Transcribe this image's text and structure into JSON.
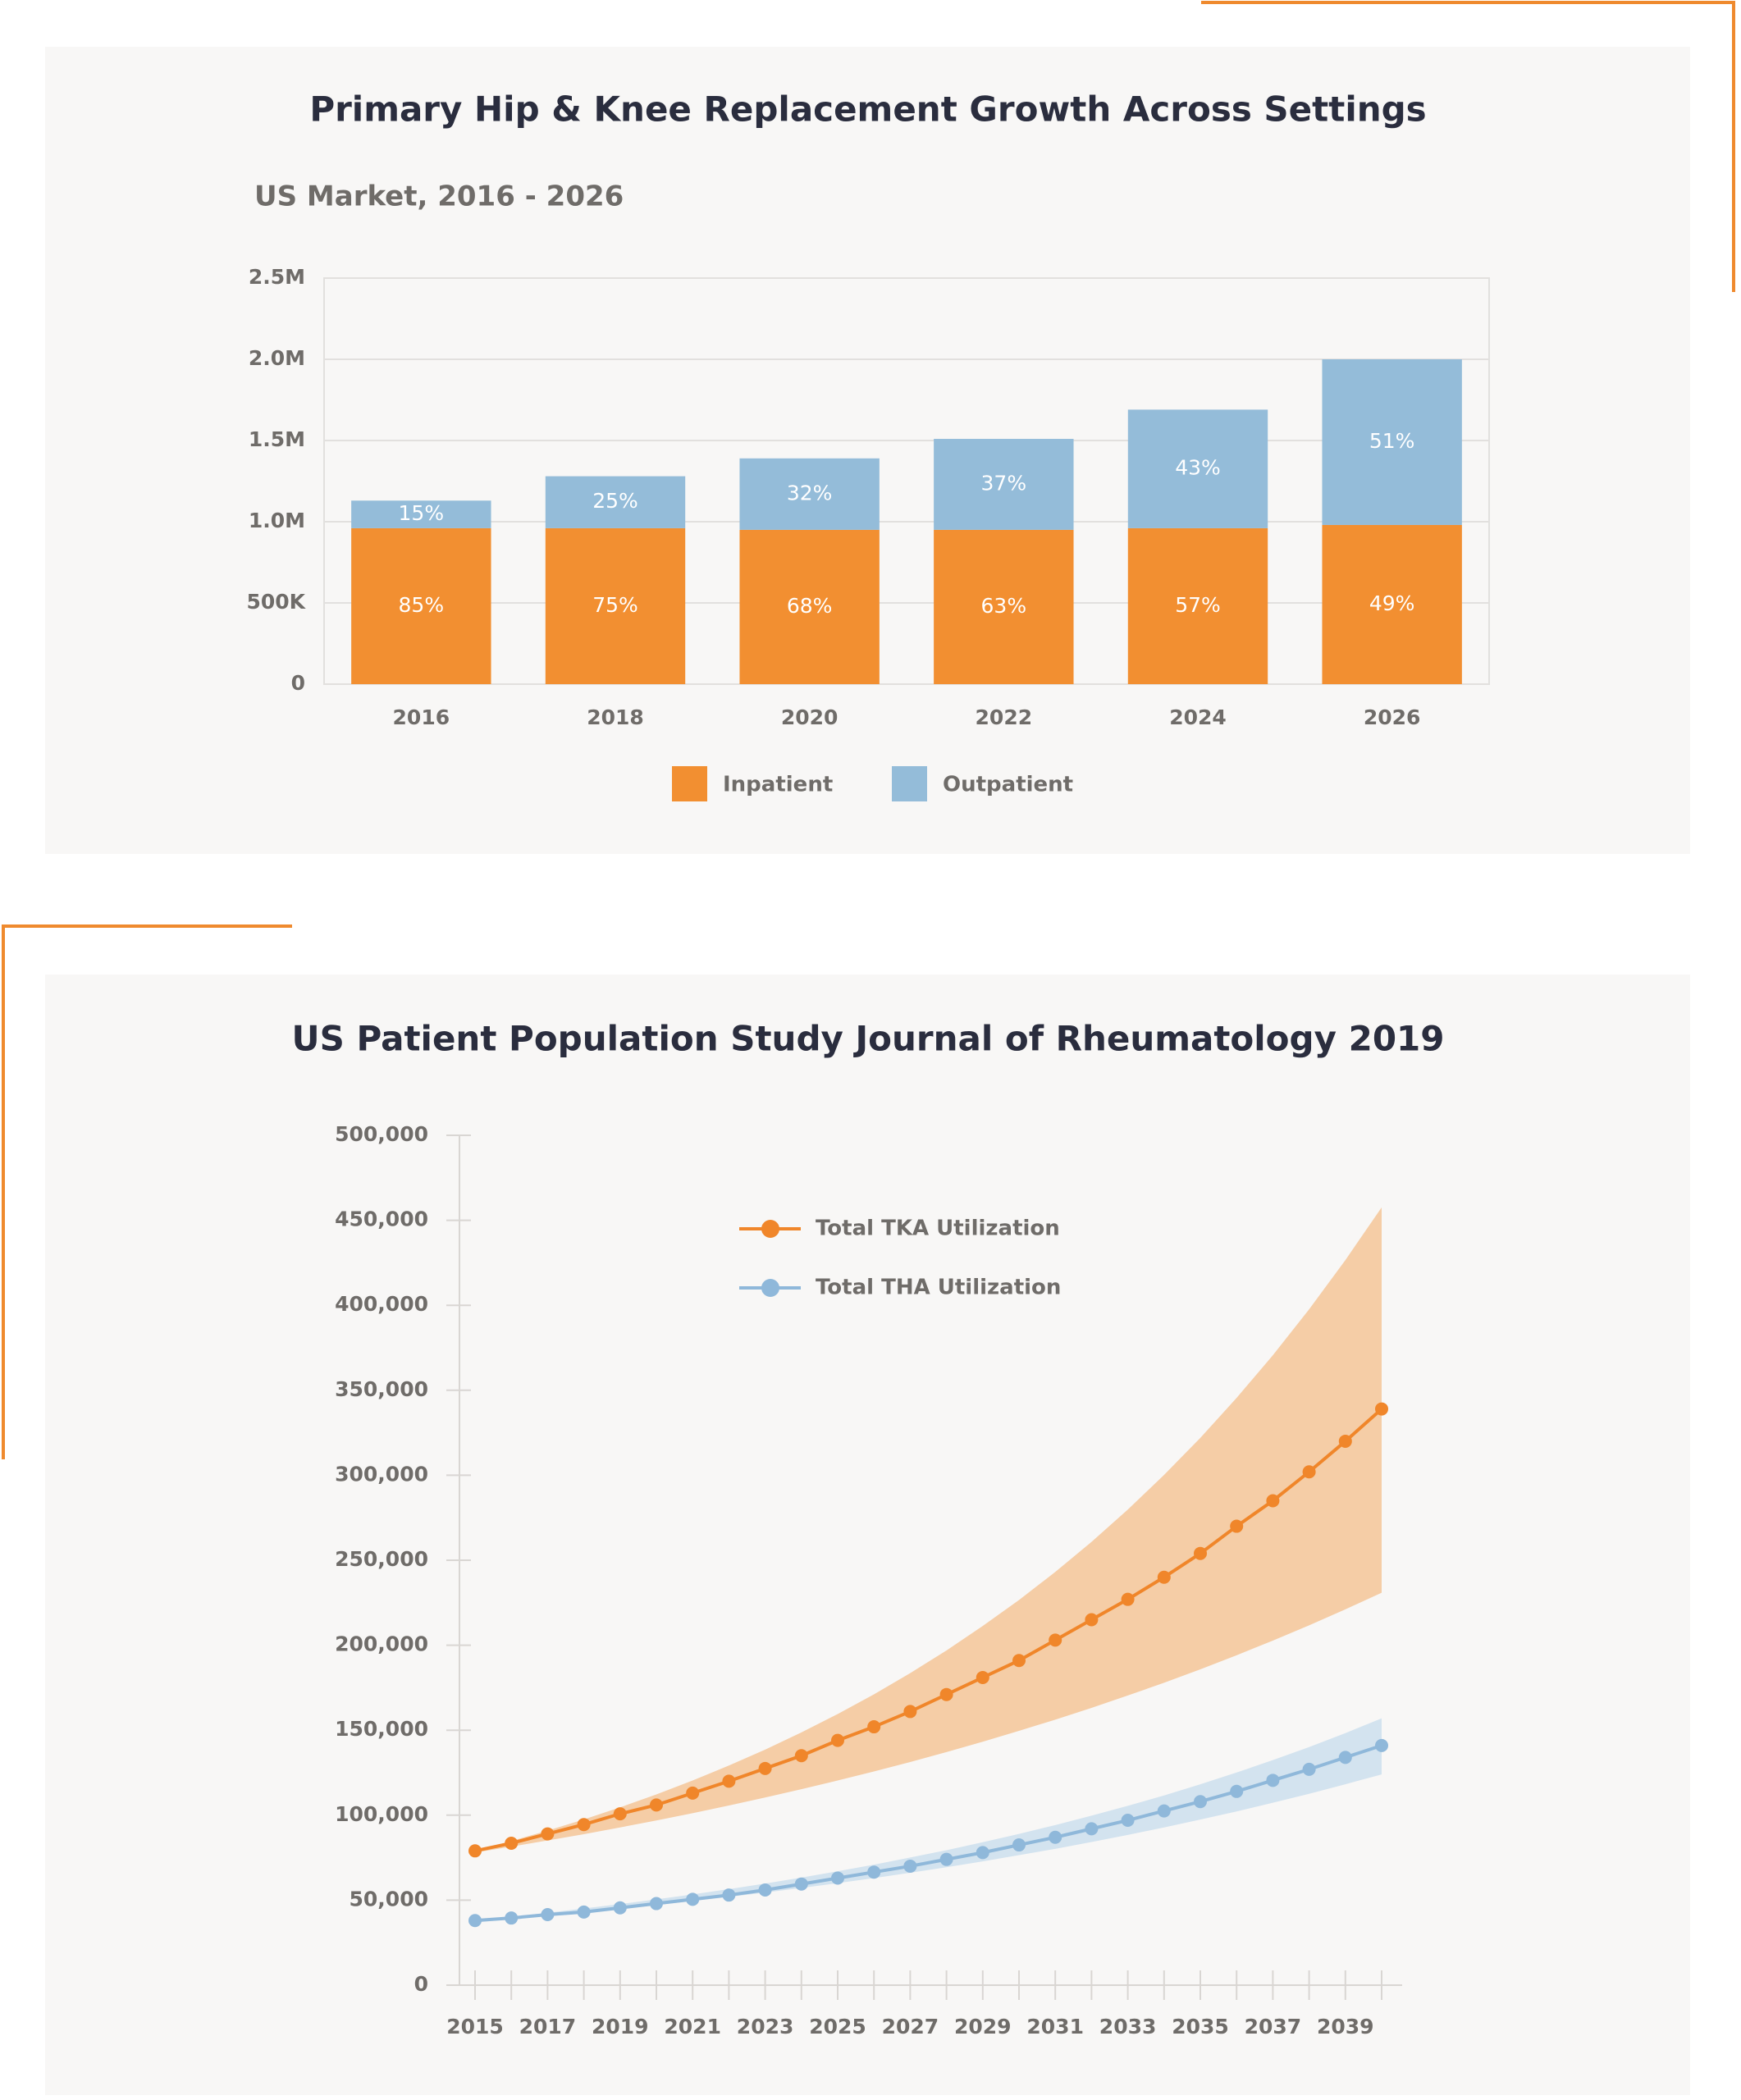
{
  "chart_data": [
    {
      "type": "bar",
      "stacked": true,
      "title": "Primary Hip & Knee Replacement Growth Across Settings",
      "subtitle": "US Market, 2016 - 2026",
      "categories": [
        "2016",
        "2018",
        "2020",
        "2022",
        "2024",
        "2026"
      ],
      "series": [
        {
          "name": "Inpatient",
          "color": "#f28f31",
          "values": [
            960000,
            960000,
            950000,
            950000,
            960000,
            980000
          ],
          "data_labels": [
            "85%",
            "75%",
            "68%",
            "63%",
            "57%",
            "49%"
          ]
        },
        {
          "name": "Outpatient",
          "color": "#94bcd9",
          "values": [
            170000,
            320000,
            440000,
            560000,
            730000,
            1020000
          ],
          "data_labels": [
            "15%",
            "25%",
            "32%",
            "37%",
            "43%",
            "51%"
          ]
        }
      ],
      "ylim": [
        0,
        2500000
      ],
      "yticks": [
        0,
        {
          "value": 500000,
          "label": "500K"
        },
        {
          "value": 1000000,
          "label": "1.0M"
        },
        {
          "value": 1500000,
          "label": "1.5M"
        },
        {
          "value": 2000000,
          "label": "2.0M"
        },
        {
          "value": 2500000,
          "label": "2.5M"
        }
      ],
      "grid": true,
      "legend": "bottom"
    },
    {
      "type": "line",
      "title": "US Patient Population Study Journal of Rheumatology 2019",
      "x": [
        2015,
        2016,
        2017,
        2018,
        2019,
        2020,
        2021,
        2022,
        2023,
        2024,
        2025,
        2026,
        2027,
        2028,
        2029,
        2030,
        2031,
        2032,
        2033,
        2034,
        2035,
        2036,
        2037,
        2038,
        2039,
        2040
      ],
      "series": [
        {
          "name": "Total TKA Utilization",
          "color": "#f0862a",
          "band_color": "#f5cda6",
          "values": [
            79000,
            83500,
            89000,
            94500,
            100800,
            106000,
            113000,
            120000,
            127500,
            135000,
            144000,
            152000,
            161000,
            171000,
            181000,
            191000,
            203000,
            215000,
            227000,
            240000,
            254000,
            270000,
            285000,
            302000,
            320000,
            339000
          ],
          "upper": [
            79000,
            84800,
            90900,
            97500,
            104600,
            112200,
            120400,
            129200,
            138600,
            148700,
            159500,
            171100,
            183600,
            196900,
            211300,
            226600,
            243100,
            260800,
            279800,
            300200,
            322000,
            345500,
            370600,
            397600,
            426600,
            457600
          ],
          "lower": [
            78000,
            81500,
            85100,
            88800,
            92800,
            96900,
            101200,
            105700,
            110400,
            115300,
            120400,
            125700,
            131300,
            137100,
            143200,
            149600,
            156200,
            163100,
            170400,
            177900,
            185800,
            194100,
            202700,
            211700,
            221100,
            230900
          ]
        },
        {
          "name": "Total THA Utilization",
          "color": "#8fb8da",
          "band_color": "#d3e3ef",
          "values": [
            38000,
            39500,
            41500,
            43000,
            45500,
            48000,
            50500,
            53000,
            56000,
            59500,
            63000,
            66500,
            70000,
            74000,
            78000,
            82500,
            87000,
            92000,
            97000,
            102500,
            108000,
            114000,
            120500,
            127000,
            134000,
            141000
          ],
          "upper": [
            38000,
            40200,
            42600,
            45100,
            47700,
            50500,
            53400,
            56500,
            59800,
            63300,
            67000,
            70900,
            75100,
            79400,
            84100,
            89000,
            94200,
            99700,
            105500,
            111600,
            118200,
            125100,
            132400,
            140100,
            148300,
            157000
          ],
          "lower": [
            37000,
            38800,
            40800,
            42800,
            44900,
            47100,
            49500,
            51900,
            54500,
            57200,
            60000,
            63000,
            66100,
            69400,
            72800,
            76500,
            80200,
            84200,
            88400,
            92800,
            97400,
            102200,
            107300,
            112600,
            118200,
            124000
          ]
        }
      ],
      "xlim": [
        2015,
        2040
      ],
      "xticks": [
        2015,
        2017,
        2019,
        2021,
        2023,
        2025,
        2027,
        2029,
        2031,
        2033,
        2035,
        2037,
        2039
      ],
      "ylim": [
        0,
        500000
      ],
      "yticks": [
        0,
        {
          "value": 50000,
          "label": "50,000"
        },
        {
          "value": 100000,
          "label": "100,000"
        },
        {
          "value": 150000,
          "label": "150,000"
        },
        {
          "value": 200000,
          "label": "200,000"
        },
        {
          "value": 250000,
          "label": "250,000"
        },
        {
          "value": 300000,
          "label": "300,000"
        },
        {
          "value": 350000,
          "label": "350,000"
        },
        {
          "value": 400000,
          "label": "400,000"
        },
        {
          "value": 450000,
          "label": "450,000"
        },
        {
          "value": 500000,
          "label": "500,000"
        }
      ],
      "grid": false,
      "legend": "top-left"
    }
  ]
}
